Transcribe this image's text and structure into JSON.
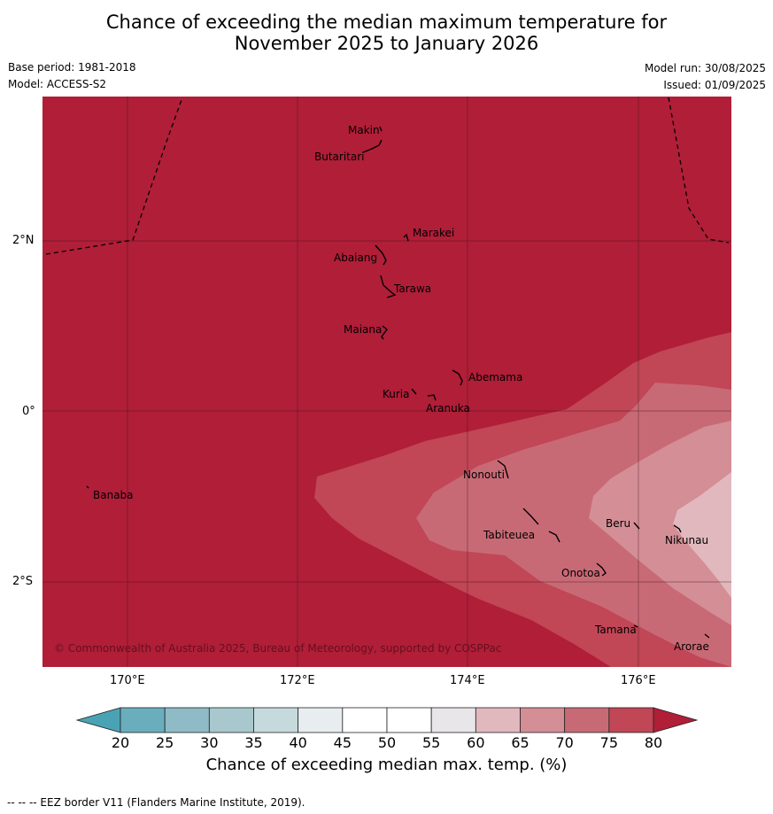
{
  "title": {
    "line1": "Chance of exceeding the median maximum temperature for",
    "line2": "November 2025 to January 2026"
  },
  "meta": {
    "base_period": "Base period: 1981-2018",
    "model": "Model: ACCESS-S2",
    "model_run": "Model run: 30/08/2025",
    "issued": "Issued: 01/09/2025"
  },
  "map": {
    "copyright": "© Commonwealth of Australia 2025, Bureau of Meteorology, supported by COSPPac",
    "x_axis": [
      "170°E",
      "172°E",
      "174°E",
      "176°E"
    ],
    "y_axis": [
      "2°N",
      "0°",
      "2°S"
    ],
    "background_color": "#b01e38",
    "places": [
      {
        "name": "Makin"
      },
      {
        "name": "Butaritari"
      },
      {
        "name": "Marakei"
      },
      {
        "name": "Abaiang"
      },
      {
        "name": "Tarawa"
      },
      {
        "name": "Maiana"
      },
      {
        "name": "Abemama"
      },
      {
        "name": "Kuria"
      },
      {
        "name": "Aranuka"
      },
      {
        "name": "Nonouti"
      },
      {
        "name": "Banaba"
      },
      {
        "name": "Beru"
      },
      {
        "name": "Tabiteuea"
      },
      {
        "name": "Nikunau"
      },
      {
        "name": "Onotoa"
      },
      {
        "name": "Tamana"
      },
      {
        "name": "Arorae"
      }
    ]
  },
  "colorbar": {
    "ticks": [
      "20",
      "25",
      "30",
      "35",
      "40",
      "45",
      "50",
      "55",
      "60",
      "65",
      "70",
      "75",
      "80"
    ],
    "colors": [
      "#6aaebe",
      "#8ebbc6",
      "#a9c8ce",
      "#c6dadd",
      "#e8eef0",
      "#ffffff",
      "#ffffff",
      "#e8e6e8",
      "#e1b8be",
      "#d48e96",
      "#c86a76",
      "#c14656"
    ],
    "under_color": "#4aa3b4",
    "over_color": "#b01e38",
    "title": "Chance of exceeding median max. temp. (%)"
  },
  "footer": "--  --  -- EEZ border V11 (Flanders Marine Institute, 2019)."
}
